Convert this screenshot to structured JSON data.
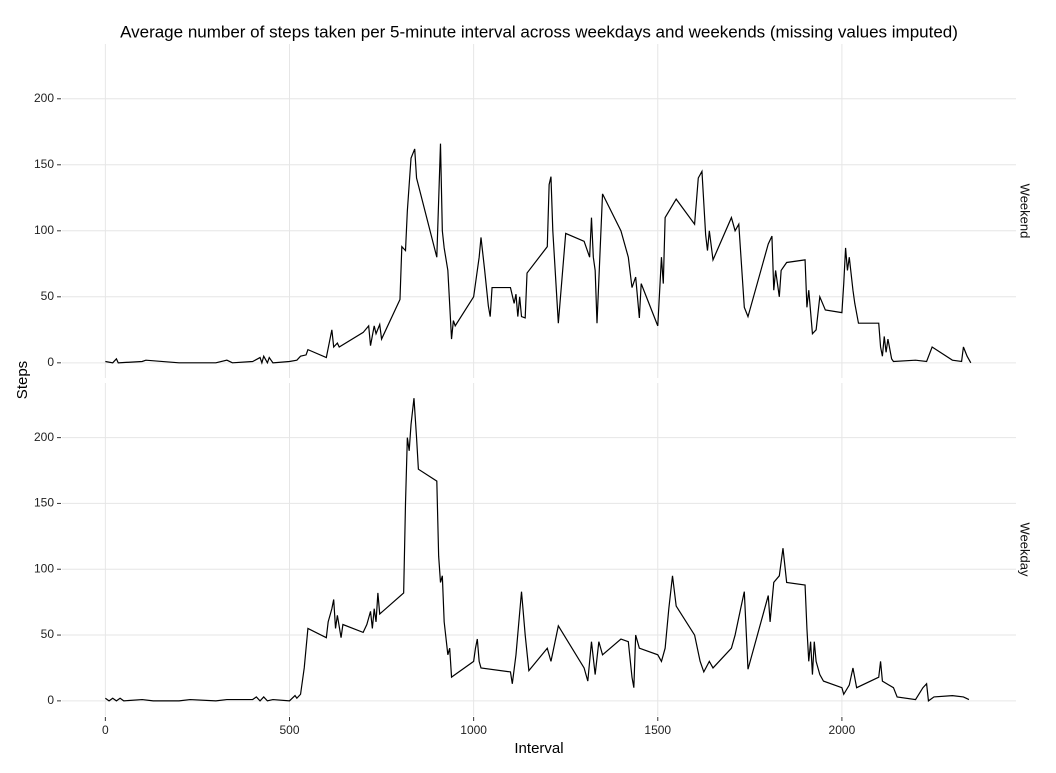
{
  "chart_data": {
    "type": "line",
    "title": "Average number of steps taken per 5-minute interval across weekdays and weekends (missing values imputed)",
    "x_label": "Interval",
    "y_label": "Steps",
    "color": "#000000",
    "grid": true,
    "xlim": [
      -117.75,
      2472.75
    ],
    "xticks": [
      0,
      500,
      1000,
      1500,
      2000
    ],
    "ylim": [
      -11.5,
      241.5
    ],
    "yticks": [
      0,
      50,
      100,
      150,
      200
    ],
    "facets": [
      {
        "label": "Weekend",
        "x": [
          0,
          20,
          30,
          35,
          100,
          110,
          200,
          300,
          330,
          345,
          400,
          420,
          425,
          430,
          440,
          445,
          455,
          500,
          520,
          530,
          545,
          550,
          600,
          615,
          620,
          630,
          635,
          700,
          715,
          720,
          730,
          735,
          745,
          750,
          800,
          805,
          815,
          820,
          830,
          840,
          845,
          900,
          910,
          915,
          920,
          930,
          940,
          945,
          950,
          1000,
          1015,
          1020,
          1030,
          1040,
          1045,
          1050,
          1100,
          1110,
          1115,
          1120,
          1125,
          1130,
          1140,
          1145,
          1200,
          1205,
          1210,
          1215,
          1230,
          1250,
          1300,
          1315,
          1320,
          1325,
          1330,
          1335,
          1350,
          1400,
          1420,
          1430,
          1440,
          1450,
          1455,
          1500,
          1510,
          1515,
          1520,
          1550,
          1600,
          1610,
          1620,
          1630,
          1635,
          1640,
          1650,
          1700,
          1710,
          1720,
          1735,
          1745,
          1800,
          1810,
          1815,
          1820,
          1830,
          1835,
          1840,
          1845,
          1850,
          1900,
          1905,
          1910,
          1920,
          1930,
          1940,
          1955,
          2000,
          2005,
          2010,
          2015,
          2020,
          2030,
          2035,
          2045,
          2100,
          2105,
          2110,
          2115,
          2120,
          2125,
          2135,
          2140,
          2200,
          2230,
          2245,
          2300,
          2325,
          2330,
          2340,
          2350
        ],
        "values": [
          1,
          0,
          3,
          0,
          1,
          2,
          0,
          0,
          2,
          0,
          1,
          4,
          0,
          5,
          0,
          4,
          0,
          1,
          2,
          5,
          6,
          10,
          4,
          25,
          12,
          15,
          12,
          23,
          28,
          13,
          28,
          22,
          29,
          18,
          48,
          88,
          85,
          115,
          155,
          162,
          140,
          80,
          166,
          100,
          87,
          70,
          18,
          32,
          28,
          50,
          80,
          95,
          70,
          43,
          35,
          57,
          57,
          45,
          52,
          35,
          50,
          35,
          34,
          68,
          88,
          135,
          141,
          100,
          30,
          98,
          92,
          80,
          110,
          80,
          70,
          30,
          128,
          100,
          80,
          57,
          65,
          34,
          60,
          28,
          80,
          60,
          110,
          124,
          105,
          140,
          145,
          97,
          85,
          100,
          78,
          110,
          100,
          105,
          42,
          35,
          90,
          96,
          55,
          70,
          50,
          70,
          72,
          74,
          76,
          78,
          42,
          55,
          22,
          25,
          50,
          40,
          38,
          60,
          87,
          70,
          80,
          55,
          45,
          30,
          30,
          12,
          5,
          20,
          8,
          18,
          3,
          1,
          2,
          1,
          12,
          2,
          1,
          12,
          5,
          0
        ]
      },
      {
        "label": "Weekday",
        "x": [
          0,
          10,
          20,
          30,
          40,
          50,
          100,
          130,
          200,
          230,
          300,
          330,
          400,
          410,
          420,
          430,
          440,
          455,
          500,
          515,
          520,
          530,
          540,
          550,
          600,
          605,
          615,
          620,
          625,
          630,
          640,
          645,
          700,
          710,
          720,
          725,
          730,
          735,
          740,
          745,
          810,
          815,
          820,
          825,
          830,
          838,
          845,
          850,
          900,
          905,
          910,
          915,
          920,
          930,
          935,
          940,
          1000,
          1005,
          1010,
          1015,
          1020,
          1100,
          1105,
          1115,
          1130,
          1140,
          1150,
          1200,
          1210,
          1230,
          1300,
          1310,
          1320,
          1330,
          1340,
          1350,
          1400,
          1420,
          1430,
          1435,
          1440,
          1450,
          1500,
          1510,
          1520,
          1530,
          1540,
          1550,
          1600,
          1615,
          1625,
          1640,
          1650,
          1700,
          1710,
          1725,
          1735,
          1745,
          1800,
          1805,
          1815,
          1830,
          1840,
          1850,
          1900,
          1905,
          1910,
          1915,
          1920,
          1925,
          1930,
          1940,
          1950,
          2000,
          2005,
          2020,
          2030,
          2040,
          2100,
          2105,
          2110,
          2140,
          2150,
          2200,
          2220,
          2230,
          2235,
          2250,
          2300,
          2330,
          2345
        ],
        "values": [
          2,
          0,
          2,
          0,
          2,
          0,
          1,
          0,
          0,
          1,
          0,
          1,
          1,
          3,
          0,
          3,
          0,
          1,
          0,
          4,
          2,
          5,
          25,
          55,
          48,
          60,
          70,
          77,
          55,
          65,
          48,
          58,
          52,
          58,
          68,
          55,
          70,
          60,
          82,
          66,
          82,
          150,
          200,
          190,
          210,
          230,
          200,
          176,
          167,
          110,
          90,
          95,
          60,
          35,
          40,
          18,
          30,
          40,
          47,
          30,
          25,
          22,
          13,
          35,
          83,
          50,
          23,
          40,
          30,
          57,
          25,
          15,
          45,
          20,
          45,
          35,
          47,
          45,
          18,
          10,
          50,
          40,
          35,
          30,
          40,
          70,
          95,
          72,
          50,
          30,
          22,
          30,
          25,
          40,
          50,
          70,
          83,
          24,
          80,
          60,
          90,
          95,
          116,
          90,
          88,
          55,
          30,
          45,
          20,
          45,
          30,
          20,
          15,
          10,
          5,
          12,
          25,
          10,
          18,
          30,
          15,
          10,
          3,
          1,
          10,
          13,
          0,
          3,
          4,
          3,
          1
        ]
      }
    ]
  }
}
